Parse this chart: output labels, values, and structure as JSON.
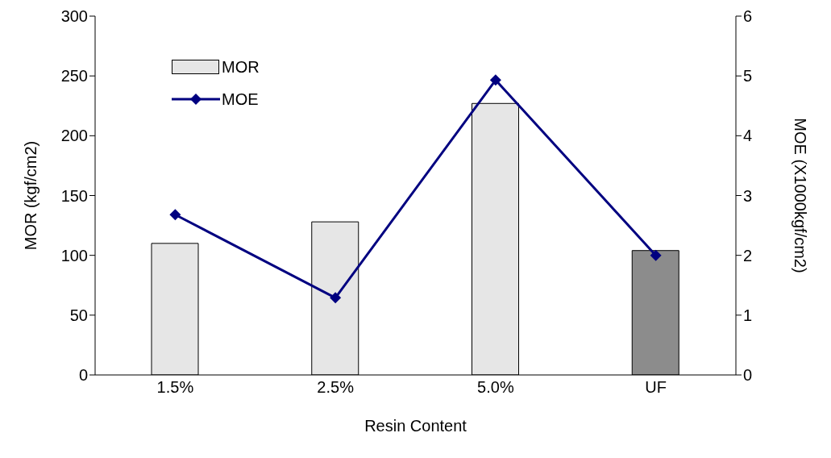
{
  "chart_data": {
    "type": "bar",
    "xlabel": "Resin Content",
    "ylabel": "MOR (kgf/cm2)",
    "y2label": "MOE (X1000kgf/cm2)",
    "categories": [
      "1.5%",
      "2.5%",
      "5.0%",
      "UF"
    ],
    "series": [
      {
        "name": "MOR",
        "color": "#e6e6e6",
        "colors": [
          "#e6e6e6",
          "#e6e6e6",
          "#e6e6e6",
          "#8c8c8c"
        ],
        "values": [
          110,
          128,
          227,
          104
        ]
      },
      {
        "name": "MOE",
        "type": "line",
        "axis": "y2",
        "color": "#000080",
        "marker": "diamond",
        "values": [
          2.68,
          1.29,
          4.93,
          2.0
        ]
      }
    ],
    "ylim": [
      0,
      300
    ],
    "yticks": [
      0,
      50,
      100,
      150,
      200,
      250,
      300
    ],
    "y2lim": [
      0,
      6
    ],
    "y2ticks": [
      0,
      1,
      2,
      3,
      4,
      5,
      6
    ],
    "grid": false,
    "legend": "top left"
  }
}
